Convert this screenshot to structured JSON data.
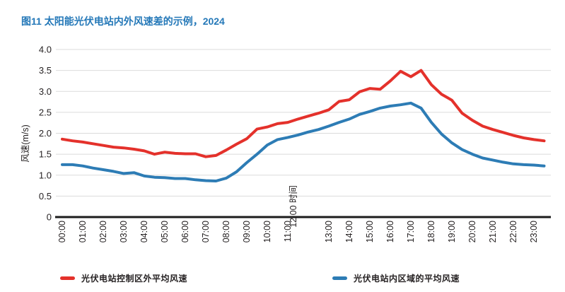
{
  "title": "图11 太阳能光伏电站内外风速差的示例，2024",
  "colors": {
    "title": "#2478b8",
    "outside_line": "#e4312b",
    "inside_line": "#2d7cb5",
    "grid": "#dbdbdb",
    "axis": "#1c1c1c",
    "text": "#262223"
  },
  "chart_data": {
    "type": "line",
    "title": "图11 太阳能光伏电站内外风速差的示例，2024",
    "xlabel": "时间",
    "ylabel": "风速(m/s)",
    "ylim": [
      0,
      4.0
    ],
    "ytick_labels": [
      "4.0",
      "3.5",
      "3.0",
      "2.5",
      "2.0",
      "1.5",
      "1.0",
      "0.5",
      "0"
    ],
    "x_labels": [
      "00:00",
      "01:00",
      "02:00",
      "03:00",
      "04:00",
      "05:00",
      "06:00",
      "07:00",
      "08:00",
      "09:00",
      "10:00",
      "11:00",
      "12:00",
      "13:00",
      "14:00",
      "15:00",
      "16:00",
      "17:00",
      "18:00",
      "19:00",
      "20:00",
      "21:00",
      "22:00",
      "23:00"
    ],
    "x_label_overlap_quirk": "12:00 时间",
    "x_step_hours": 0.5,
    "grid": "horizontal",
    "legend_position": "bottom",
    "series": [
      {
        "name": "光伏电站控制区外平均风速",
        "color": "#e4312b",
        "values": [
          1.86,
          1.82,
          1.79,
          1.75,
          1.71,
          1.67,
          1.65,
          1.62,
          1.58,
          1.5,
          1.55,
          1.52,
          1.51,
          1.51,
          1.44,
          1.47,
          1.6,
          1.74,
          1.87,
          2.1,
          2.15,
          2.23,
          2.26,
          2.34,
          2.41,
          2.48,
          2.56,
          2.76,
          2.8,
          2.99,
          3.07,
          3.05,
          3.25,
          3.48,
          3.35,
          3.5,
          3.16,
          2.93,
          2.79,
          2.48,
          2.31,
          2.17,
          2.09,
          2.02,
          1.95,
          1.89,
          1.85,
          1.82
        ]
      },
      {
        "name": "光伏电站内区域的平均风速",
        "color": "#2d7cb5",
        "values": [
          1.25,
          1.25,
          1.22,
          1.17,
          1.13,
          1.09,
          1.04,
          1.06,
          0.98,
          0.95,
          0.94,
          0.92,
          0.92,
          0.89,
          0.87,
          0.86,
          0.93,
          1.08,
          1.3,
          1.5,
          1.72,
          1.85,
          1.9,
          1.96,
          2.03,
          2.09,
          2.17,
          2.26,
          2.34,
          2.45,
          2.52,
          2.6,
          2.65,
          2.68,
          2.72,
          2.6,
          2.26,
          1.98,
          1.77,
          1.61,
          1.5,
          1.41,
          1.36,
          1.31,
          1.27,
          1.25,
          1.24,
          1.22
        ]
      }
    ]
  },
  "legend": {
    "outside_label": "光伏电站控制区外平均风速",
    "inside_label": "光伏电站内区域的平均风速"
  }
}
